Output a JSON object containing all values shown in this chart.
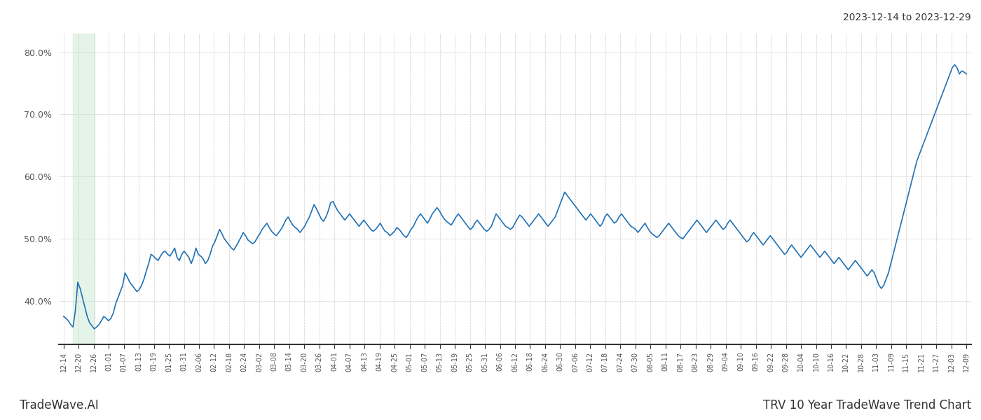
{
  "title_right": "2023-12-14 to 2023-12-29",
  "title_bottom_left": "TradeWave.AI",
  "title_bottom_right": "TRV 10 Year TradeWave Trend Chart",
  "line_color": "#2171b5",
  "line_width": 1.2,
  "highlight_color": "#d4edda",
  "highlight_alpha": 0.6,
  "highlight_xstart": 4,
  "highlight_xend": 13,
  "ylim": [
    33,
    83
  ],
  "yticks": [
    40.0,
    50.0,
    60.0,
    70.0,
    80.0
  ],
  "background_color": "#ffffff",
  "grid_color": "#cccccc",
  "x_labels": [
    "12-14",
    "12-20",
    "12-26",
    "01-01",
    "01-07",
    "01-13",
    "01-19",
    "01-25",
    "01-31",
    "02-06",
    "02-12",
    "02-18",
    "02-24",
    "03-02",
    "03-08",
    "03-14",
    "03-20",
    "03-26",
    "04-01",
    "04-07",
    "04-13",
    "04-19",
    "04-25",
    "05-01",
    "05-07",
    "05-13",
    "05-19",
    "05-25",
    "05-31",
    "06-06",
    "06-12",
    "06-18",
    "06-24",
    "06-30",
    "07-06",
    "07-12",
    "07-18",
    "07-24",
    "07-30",
    "08-05",
    "08-11",
    "08-17",
    "08-23",
    "08-29",
    "09-04",
    "09-10",
    "09-16",
    "09-22",
    "09-28",
    "10-04",
    "10-10",
    "10-16",
    "10-22",
    "10-28",
    "11-03",
    "11-09",
    "11-15",
    "11-21",
    "11-27",
    "12-03",
    "12-09"
  ],
  "y_values": [
    37.5,
    37.2,
    36.8,
    36.2,
    35.8,
    38.5,
    43.0,
    42.0,
    40.5,
    39.0,
    37.5,
    36.5,
    36.0,
    35.5,
    35.8,
    36.2,
    36.8,
    37.5,
    37.2,
    36.8,
    37.2,
    38.0,
    39.5,
    40.5,
    41.5,
    42.5,
    44.5,
    43.8,
    43.0,
    42.5,
    42.0,
    41.5,
    41.8,
    42.5,
    43.5,
    44.8,
    46.0,
    47.5,
    47.2,
    46.8,
    46.5,
    47.2,
    47.8,
    48.0,
    47.5,
    47.2,
    47.8,
    48.5,
    47.0,
    46.5,
    47.5,
    48.0,
    47.5,
    47.0,
    46.0,
    47.0,
    48.5,
    47.5,
    47.2,
    46.8,
    46.0,
    46.5,
    47.5,
    48.8,
    49.5,
    50.5,
    51.5,
    50.8,
    50.0,
    49.5,
    49.0,
    48.5,
    48.2,
    48.8,
    49.5,
    50.2,
    51.0,
    50.5,
    49.8,
    49.5,
    49.2,
    49.5,
    50.2,
    50.8,
    51.5,
    52.0,
    52.5,
    51.8,
    51.2,
    50.8,
    50.5,
    51.0,
    51.5,
    52.2,
    53.0,
    53.5,
    52.8,
    52.2,
    51.8,
    51.5,
    51.0,
    51.5,
    52.0,
    52.8,
    53.5,
    54.5,
    55.5,
    54.8,
    54.0,
    53.2,
    52.8,
    53.5,
    54.5,
    55.8,
    56.0,
    55.2,
    54.5,
    54.0,
    53.5,
    53.0,
    53.5,
    54.0,
    53.5,
    53.0,
    52.5,
    52.0,
    52.5,
    53.0,
    52.5,
    52.0,
    51.5,
    51.2,
    51.5,
    52.0,
    52.5,
    51.8,
    51.2,
    51.0,
    50.5,
    50.8,
    51.2,
    51.8,
    51.5,
    51.0,
    50.5,
    50.2,
    50.8,
    51.5,
    52.0,
    52.8,
    53.5,
    54.0,
    53.5,
    53.0,
    52.5,
    53.2,
    54.0,
    54.5,
    55.0,
    54.5,
    53.8,
    53.2,
    52.8,
    52.5,
    52.2,
    52.8,
    53.5,
    54.0,
    53.5,
    53.0,
    52.5,
    52.0,
    51.5,
    51.8,
    52.5,
    53.0,
    52.5,
    52.0,
    51.5,
    51.2,
    51.5,
    52.0,
    53.0,
    54.0,
    53.5,
    53.0,
    52.5,
    52.0,
    51.8,
    51.5,
    51.8,
    52.5,
    53.2,
    53.8,
    53.5,
    53.0,
    52.5,
    52.0,
    52.5,
    53.0,
    53.5,
    54.0,
    53.5,
    53.0,
    52.5,
    52.0,
    52.5,
    53.0,
    53.5,
    54.5,
    55.5,
    56.5,
    57.5,
    57.0,
    56.5,
    56.0,
    55.5,
    55.0,
    54.5,
    54.0,
    53.5,
    53.0,
    53.5,
    54.0,
    53.5,
    53.0,
    52.5,
    52.0,
    52.5,
    53.5,
    54.0,
    53.5,
    53.0,
    52.5,
    52.8,
    53.5,
    54.0,
    53.5,
    53.0,
    52.5,
    52.0,
    51.8,
    51.5,
    51.0,
    51.5,
    52.0,
    52.5,
    51.8,
    51.2,
    50.8,
    50.5,
    50.2,
    50.5,
    51.0,
    51.5,
    52.0,
    52.5,
    52.0,
    51.5,
    51.0,
    50.5,
    50.2,
    50.0,
    50.5,
    51.0,
    51.5,
    52.0,
    52.5,
    53.0,
    52.5,
    52.0,
    51.5,
    51.0,
    51.5,
    52.0,
    52.5,
    53.0,
    52.5,
    52.0,
    51.5,
    51.8,
    52.5,
    53.0,
    52.5,
    52.0,
    51.5,
    51.0,
    50.5,
    50.0,
    49.5,
    49.8,
    50.5,
    51.0,
    50.5,
    50.0,
    49.5,
    49.0,
    49.5,
    50.0,
    50.5,
    50.0,
    49.5,
    49.0,
    48.5,
    48.0,
    47.5,
    47.8,
    48.5,
    49.0,
    48.5,
    48.0,
    47.5,
    47.0,
    47.5,
    48.0,
    48.5,
    49.0,
    48.5,
    48.0,
    47.5,
    47.0,
    47.5,
    48.0,
    47.5,
    47.0,
    46.5,
    46.0,
    46.5,
    47.0,
    46.5,
    46.0,
    45.5,
    45.0,
    45.5,
    46.0,
    46.5,
    46.0,
    45.5,
    45.0,
    44.5,
    44.0,
    44.5,
    45.0,
    44.5,
    43.5,
    42.5,
    42.0,
    42.5,
    43.5,
    44.5,
    46.0,
    47.5,
    49.0,
    50.5,
    52.0,
    53.5,
    55.0,
    56.5,
    58.0,
    59.5,
    61.0,
    62.5,
    63.5,
    64.5,
    65.5,
    66.5,
    67.5,
    68.5,
    69.5,
    70.5,
    71.5,
    72.5,
    73.5,
    74.5,
    75.5,
    76.5,
    77.5,
    78.0,
    77.5,
    76.5,
    77.0,
    76.8,
    76.5
  ]
}
